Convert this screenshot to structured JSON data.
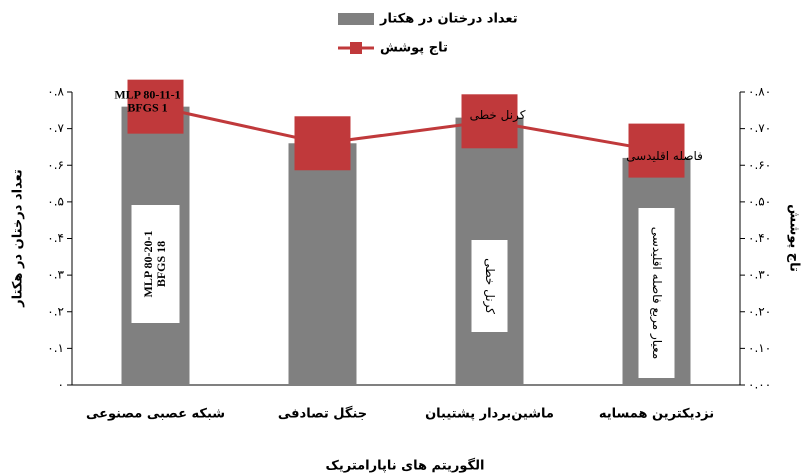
{
  "chart_data": {
    "type": "bar_line",
    "legend_position": "top",
    "categories": [
      "شبکه عصبی مصنوعی",
      "جنگل تصادفی",
      "ماشین‌بردار پشتیبان",
      "نزدیکترین همسایه"
    ],
    "series": [
      {
        "name": "تعداد درختان در هکتار",
        "color": "#808080",
        "type": "bar",
        "values": [
          0.76,
          0.66,
          0.73,
          0.62
        ]
      },
      {
        "name": "تاج پوشش",
        "color": "#c0393b",
        "type": "line",
        "axis": "y2",
        "values": [
          0.76,
          0.66,
          0.72,
          0.64
        ]
      }
    ],
    "point_labels": [
      [
        "MLP 80-11-1",
        "BFGS 1"
      ],
      null,
      [
        "کرنل خطی"
      ],
      [
        "فاصله اقلیدسی"
      ]
    ],
    "bar_labels": [
      [
        "MLP 80-20-1",
        "BFGS 18"
      ],
      null,
      [
        "کرنل خطی"
      ],
      [
        "معیار مربع فاصله اقلیدسی"
      ]
    ],
    "xlabel": "الگوریتم های ناپارامتریک",
    "ylabel": "تعداد درختان در هکتار",
    "y2label": "تاج پوشش",
    "ylim": [
      0,
      0.8
    ],
    "yticks": [
      {
        "value": 0,
        "label": "۰"
      },
      {
        "value": 0.1,
        "label": "۰.۱"
      },
      {
        "value": 0.2,
        "label": "۰.۲"
      },
      {
        "value": 0.3,
        "label": "۰.۳"
      },
      {
        "value": 0.4,
        "label": "۰.۴"
      },
      {
        "value": 0.5,
        "label": "۰.۵"
      },
      {
        "value": 0.6,
        "label": "۰.۶"
      },
      {
        "value": 0.7,
        "label": "۰.۷"
      },
      {
        "value": 0.8,
        "label": "۰.۸"
      }
    ],
    "y2lim": [
      0,
      0.8
    ],
    "y2ticks": [
      {
        "value": 0,
        "label": "۰.۰۰"
      },
      {
        "value": 0.1,
        "label": "۰.۱۰"
      },
      {
        "value": 0.2,
        "label": "۰.۲۰"
      },
      {
        "value": 0.3,
        "label": "۰.۳۰"
      },
      {
        "value": 0.4,
        "label": "۰.۴۰"
      },
      {
        "value": 0.5,
        "label": "۰.۵۰"
      },
      {
        "value": 0.6,
        "label": "۰.۶۰"
      },
      {
        "value": 0.7,
        "label": "۰.۷۰"
      },
      {
        "value": 0.8,
        "label": "۰.۸۰"
      }
    ]
  }
}
